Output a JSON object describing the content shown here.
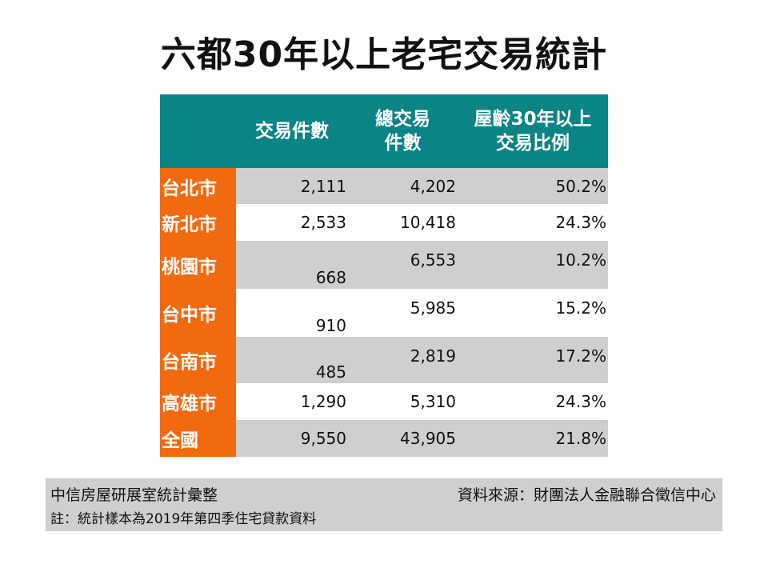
{
  "title": "六都30年以上老宅交易統計",
  "chart_data": {
    "type": "table",
    "title": "六都30年以上老宅交易統計",
    "columns": [
      "",
      "交易件數",
      "總交易件數",
      "屋齡30年以上交易比例"
    ],
    "header_lines": {
      "col1": [
        "交易件數"
      ],
      "col2": [
        "總交易",
        "件數"
      ],
      "col3": [
        "屋齡30年以上",
        "交易比例"
      ]
    },
    "rows": [
      {
        "name": "台北市",
        "count": "2,111",
        "total": "4,202",
        "ratio": "50.2%"
      },
      {
        "name": "新北市",
        "count": "2,533",
        "total": "10,418",
        "ratio": "24.3%"
      },
      {
        "name": "桃園市",
        "count": "668",
        "total": "6,553",
        "ratio": "10.2%"
      },
      {
        "name": "台中市",
        "count": "910",
        "total": "5,985",
        "ratio": "15.2%"
      },
      {
        "name": "台南市",
        "count": "485",
        "total": "2,819",
        "ratio": "17.2%"
      },
      {
        "name": "高雄市",
        "count": "1,290",
        "total": "5,310",
        "ratio": "24.3%"
      },
      {
        "name": "全國",
        "count": "9,550",
        "total": "43,905",
        "ratio": "21.8%"
      }
    ]
  },
  "footer": {
    "compiler": "中信房屋研展室統計彙整",
    "source": "資料來源：財團法人金融聯合徵信中心",
    "note": "註：統計樣本為2019年第四季住宅貸款資料"
  },
  "colors": {
    "header": "#0b8486",
    "row_label": "#f26a0f",
    "gray_row": "#d0cece"
  }
}
